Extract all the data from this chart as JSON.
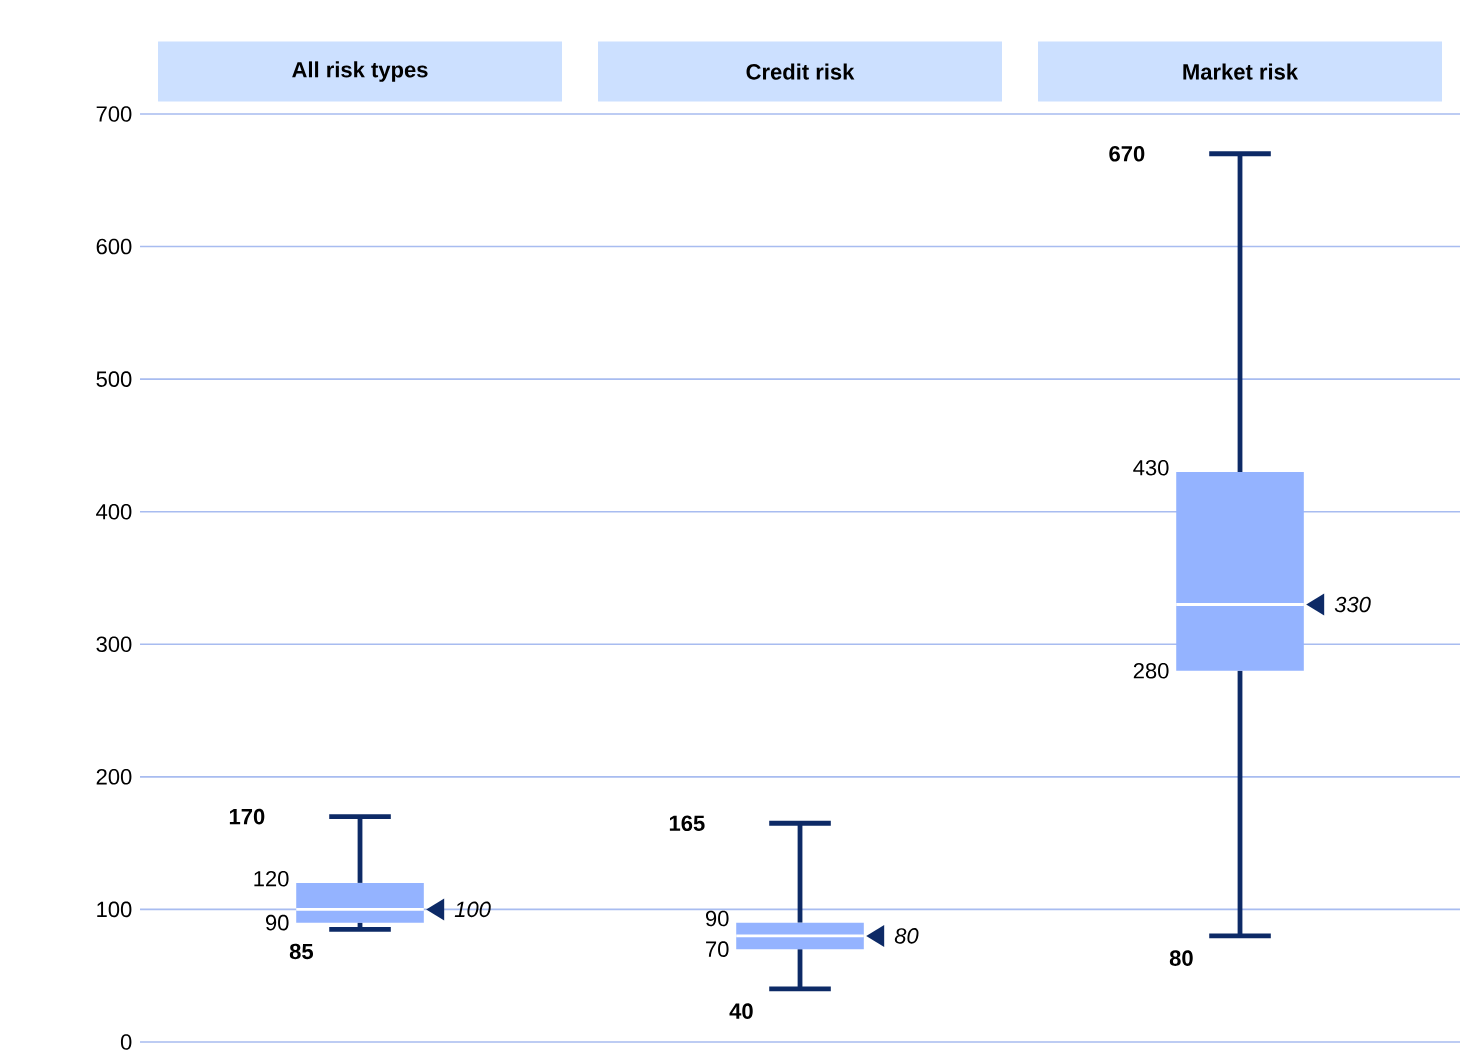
{
  "chart_data": {
    "type": "box",
    "categories": [
      "All risk types",
      "Credit risk",
      "Market risk"
    ],
    "series": [
      {
        "color": "#94b3ff",
        "boxes": [
          {
            "low": 85,
            "q1": 90,
            "median": 100,
            "q3": 120,
            "high": 170
          },
          {
            "low": 40,
            "q1": 70,
            "median": 80,
            "q3": 90,
            "high": 165
          },
          {
            "low": 80,
            "q1": 280,
            "median": 330,
            "q3": 430,
            "high": 670
          }
        ]
      }
    ],
    "ylim": [
      0,
      700
    ],
    "yticks": [
      0,
      100,
      200,
      300,
      400,
      500,
      600,
      700
    ],
    "grid": "y",
    "annotations": [
      "170",
      "120",
      "100",
      "90",
      "85",
      "165",
      "90",
      "80",
      "70",
      "40",
      "670",
      "430",
      "330",
      "280",
      "80"
    ]
  }
}
